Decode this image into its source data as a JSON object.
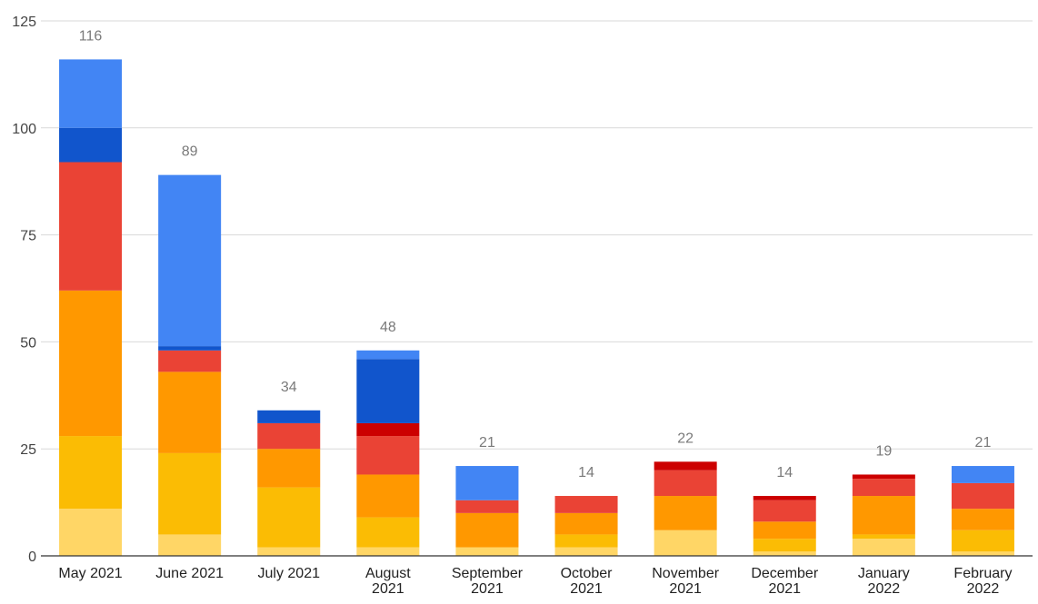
{
  "chart_data": {
    "type": "bar",
    "stacked": true,
    "title": "",
    "xlabel": "",
    "ylabel": "",
    "ylim": [
      0,
      125
    ],
    "y_ticks": [
      0,
      25,
      50,
      75,
      100,
      125
    ],
    "grid": true,
    "legend": "none",
    "categories": [
      [
        "May 2021"
      ],
      [
        "June 2021"
      ],
      [
        "July 2021"
      ],
      [
        "August",
        "2021"
      ],
      [
        "September",
        "2021"
      ],
      [
        "October",
        "2021"
      ],
      [
        "November",
        "2021"
      ],
      [
        "December",
        "2021"
      ],
      [
        "January",
        "2022"
      ],
      [
        "February",
        "2022"
      ]
    ],
    "totals": [
      116,
      89,
      34,
      48,
      21,
      14,
      22,
      14,
      19,
      21
    ],
    "series": [
      {
        "color": "#FFD666",
        "values": [
          11,
          5,
          2,
          2,
          2,
          2,
          6,
          1,
          4,
          1
        ]
      },
      {
        "color": "#FBBC04",
        "values": [
          17,
          19,
          14,
          7,
          0,
          3,
          0,
          3,
          1,
          5
        ]
      },
      {
        "color": "#FF9800",
        "values": [
          34,
          19,
          9,
          10,
          8,
          5,
          8,
          4,
          9,
          5
        ]
      },
      {
        "color": "#EA4335",
        "values": [
          30,
          5,
          6,
          9,
          3,
          4,
          6,
          5,
          4,
          6
        ]
      },
      {
        "color": "#CC0000",
        "values": [
          0,
          0,
          0,
          3,
          0,
          0,
          2,
          1,
          1,
          0
        ]
      },
      {
        "color": "#1155CC",
        "values": [
          8,
          1,
          3,
          15,
          0,
          0,
          0,
          0,
          0,
          0
        ]
      },
      {
        "color": "#4285F4",
        "values": [
          16,
          40,
          0,
          2,
          8,
          0,
          0,
          0,
          0,
          4
        ]
      }
    ]
  }
}
